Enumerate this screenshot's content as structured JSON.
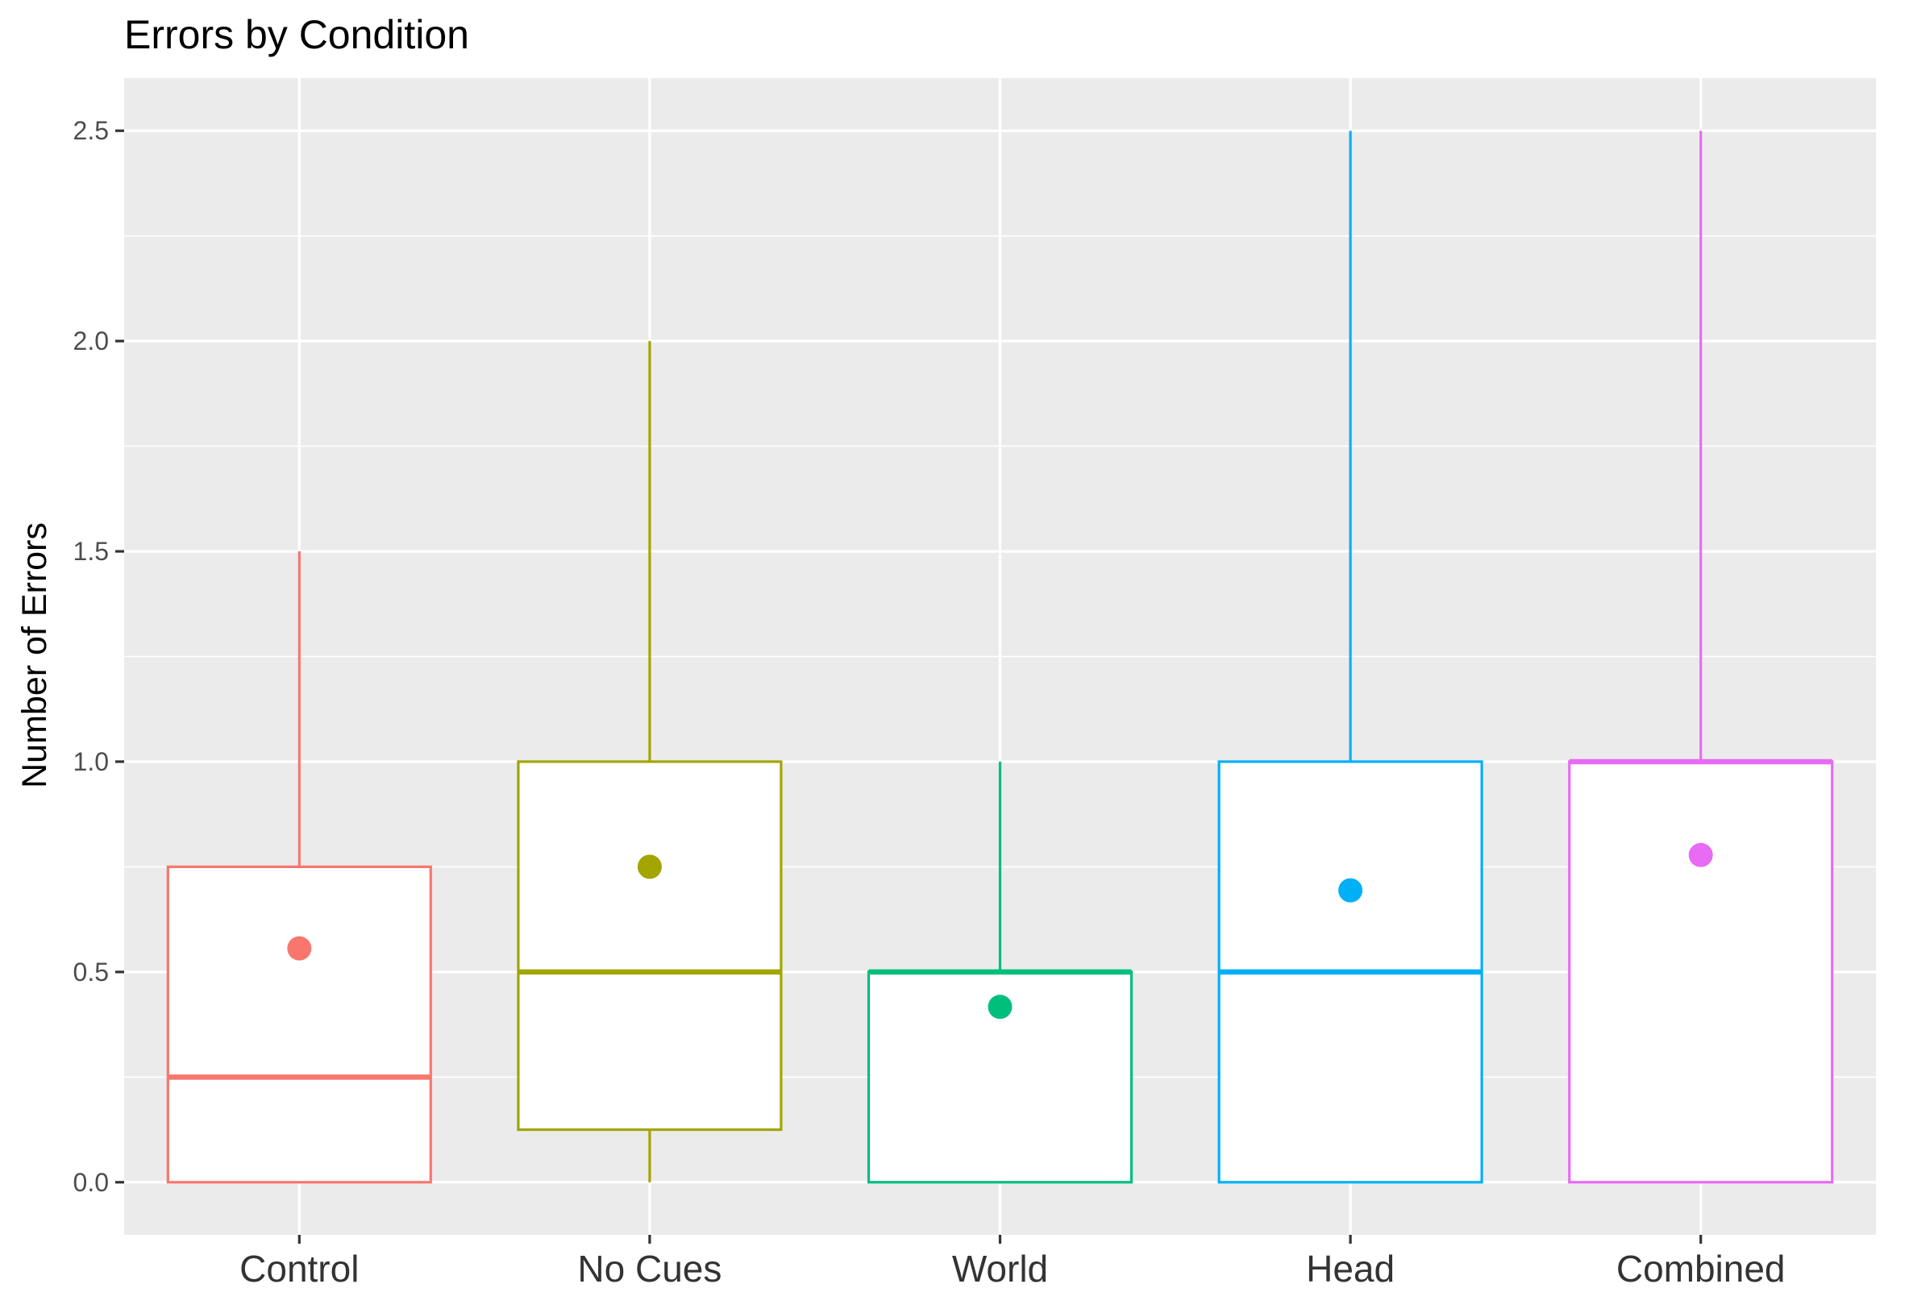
{
  "chart_data": {
    "type": "box",
    "title": "Errors by Condition",
    "xlabel": "",
    "ylabel": "Number of Errors",
    "ylim": [
      -0.125,
      2.625
    ],
    "y_ticks": [
      0.0,
      0.5,
      1.0,
      1.5,
      2.0,
      2.5
    ],
    "y_tick_labels": [
      "0.0",
      "0.5",
      "1.0",
      "1.5",
      "2.0",
      "2.5"
    ],
    "grid": true,
    "legend": "none",
    "categories": [
      "Control",
      "No Cues",
      "World",
      "Head",
      "Combined"
    ],
    "boxes": [
      {
        "category": "Control",
        "color": "#F8766D",
        "min": 0.0,
        "q1": 0.0,
        "median": 0.25,
        "q3": 0.75,
        "max": 1.5,
        "mean": 0.556
      },
      {
        "category": "No Cues",
        "color": "#A3A500",
        "min": 0.0,
        "q1": 0.125,
        "median": 0.5,
        "q3": 1.0,
        "max": 2.0,
        "mean": 0.75
      },
      {
        "category": "World",
        "color": "#00BF7D",
        "min": 0.0,
        "q1": 0.0,
        "median": 0.5,
        "q3": 0.5,
        "max": 1.0,
        "mean": 0.417
      },
      {
        "category": "Head",
        "color": "#00B0F6",
        "min": 0.0,
        "q1": 0.0,
        "median": 0.5,
        "q3": 1.0,
        "max": 2.5,
        "mean": 0.694
      },
      {
        "category": "Combined",
        "color": "#E76BF3",
        "min": 0.0,
        "q1": 0.0,
        "median": 1.0,
        "q3": 1.0,
        "max": 2.5,
        "mean": 0.778
      }
    ]
  }
}
